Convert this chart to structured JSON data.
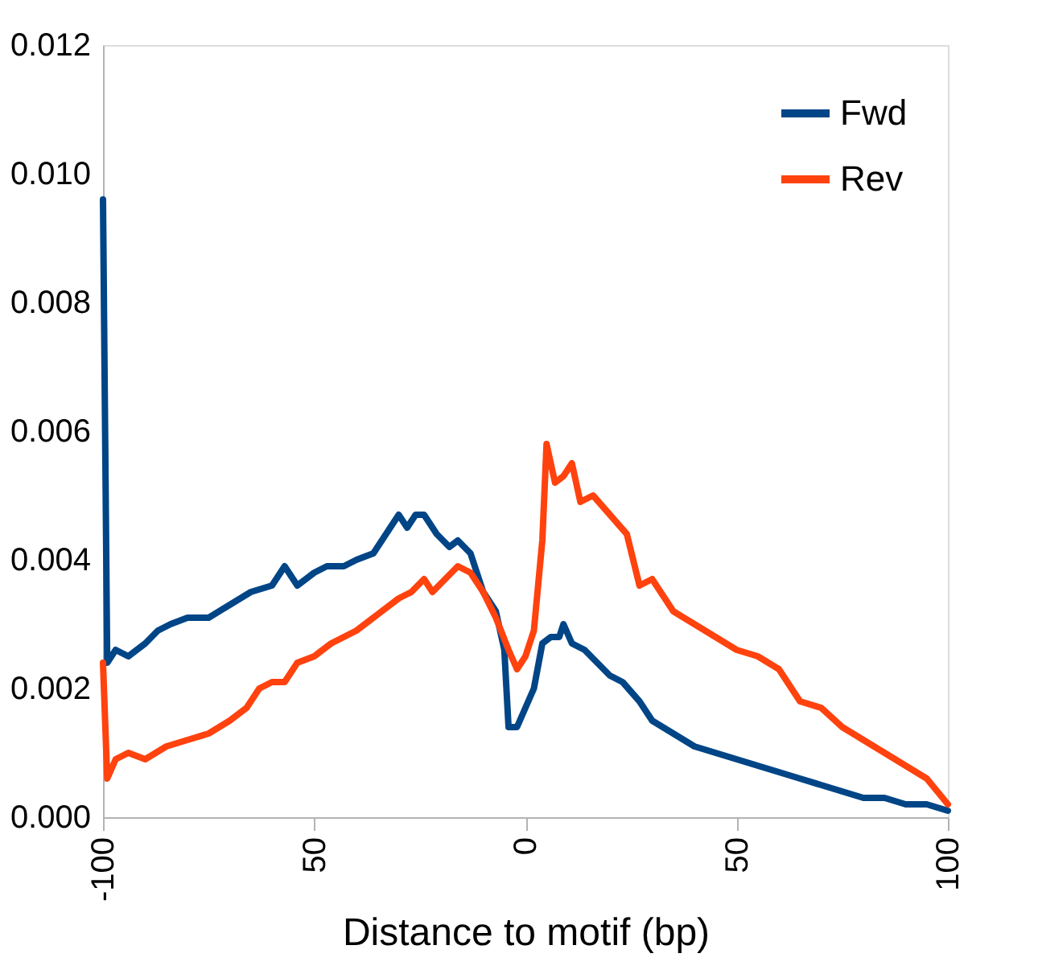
{
  "chart_data": {
    "type": "line",
    "xlabel": "Distance to motif (bp)",
    "xlim": [
      -100,
      100
    ],
    "xticks": [
      {
        "value": -100,
        "label": "-100"
      },
      {
        "value": -50,
        "label": "50"
      },
      0,
      50,
      100
    ],
    "ylim": [
      0,
      0.012
    ],
    "yticks": [
      {
        "value": 0,
        "label": "0.000"
      },
      {
        "value": 0.002,
        "label": "0.002"
      },
      {
        "value": 0.004,
        "label": "0.004"
      },
      {
        "value": 0.006,
        "label": "0.006"
      },
      {
        "value": 0.008,
        "label": "0.008"
      },
      {
        "value": 0.01,
        "label": "0.010"
      },
      {
        "value": 0.012,
        "label": "0.012"
      }
    ],
    "grid": false,
    "legend": "top right",
    "marker": "none",
    "line_style": "solid",
    "series": [
      {
        "name": "Fwd",
        "color": "#004586",
        "x": [
          -100,
          -99,
          -97,
          -94,
          -90,
          -87,
          -84,
          -80,
          -75,
          -70,
          -65,
          -60,
          -57,
          -54,
          -50,
          -47,
          -43,
          -40,
          -36,
          -33,
          -30,
          -28,
          -26,
          -24,
          -21,
          -18,
          -16,
          -13,
          -10,
          -7,
          -5,
          -4,
          -2,
          0,
          2,
          4,
          6,
          8,
          9,
          11,
          14,
          17,
          20,
          23,
          27,
          30,
          35,
          40,
          45,
          50,
          55,
          60,
          65,
          70,
          75,
          80,
          85,
          90,
          95,
          100
        ],
        "values": [
          0.0096,
          0.0024,
          0.0026,
          0.0025,
          0.0027,
          0.0029,
          0.003,
          0.0031,
          0.0031,
          0.0033,
          0.0035,
          0.0036,
          0.0039,
          0.0036,
          0.0038,
          0.0039,
          0.0039,
          0.004,
          0.0041,
          0.0044,
          0.0047,
          0.0045,
          0.0047,
          0.0047,
          0.0044,
          0.0042,
          0.0043,
          0.0041,
          0.0035,
          0.0032,
          0.0026,
          0.0014,
          0.0014,
          0.0017,
          0.002,
          0.0027,
          0.0028,
          0.0028,
          0.003,
          0.0027,
          0.0026,
          0.0024,
          0.0022,
          0.0021,
          0.0018,
          0.0015,
          0.0013,
          0.0011,
          0.001,
          0.0009,
          0.0008,
          0.0007,
          0.0006,
          0.0005,
          0.0004,
          0.0003,
          0.0003,
          0.0002,
          0.0002,
          0.0001
        ]
      },
      {
        "name": "Rev",
        "color": "#ff420e",
        "x": [
          -100,
          -99,
          -97,
          -94,
          -90,
          -85,
          -80,
          -75,
          -70,
          -66,
          -63,
          -60,
          -57,
          -54,
          -50,
          -46,
          -40,
          -36,
          -30,
          -27,
          -24,
          -22,
          -19,
          -16,
          -13,
          -10,
          -7,
          -4,
          -2,
          0,
          2,
          4,
          5,
          7,
          9,
          11,
          13,
          16,
          20,
          24,
          27,
          30,
          35,
          40,
          45,
          50,
          55,
          60,
          65,
          70,
          75,
          80,
          85,
          90,
          95,
          100
        ],
        "values": [
          0.0024,
          0.0006,
          0.0009,
          0.001,
          0.0009,
          0.0011,
          0.0012,
          0.0013,
          0.0015,
          0.0017,
          0.002,
          0.0021,
          0.0021,
          0.0024,
          0.0025,
          0.0027,
          0.0029,
          0.0031,
          0.0034,
          0.0035,
          0.0037,
          0.0035,
          0.0037,
          0.0039,
          0.0038,
          0.0035,
          0.0031,
          0.0026,
          0.0023,
          0.0025,
          0.0029,
          0.0043,
          0.0058,
          0.0052,
          0.0053,
          0.0055,
          0.0049,
          0.005,
          0.0047,
          0.0044,
          0.0036,
          0.0037,
          0.0032,
          0.003,
          0.0028,
          0.0026,
          0.0025,
          0.0023,
          0.0018,
          0.0017,
          0.0014,
          0.0012,
          0.001,
          0.0008,
          0.0006,
          0.0002
        ]
      }
    ]
  }
}
